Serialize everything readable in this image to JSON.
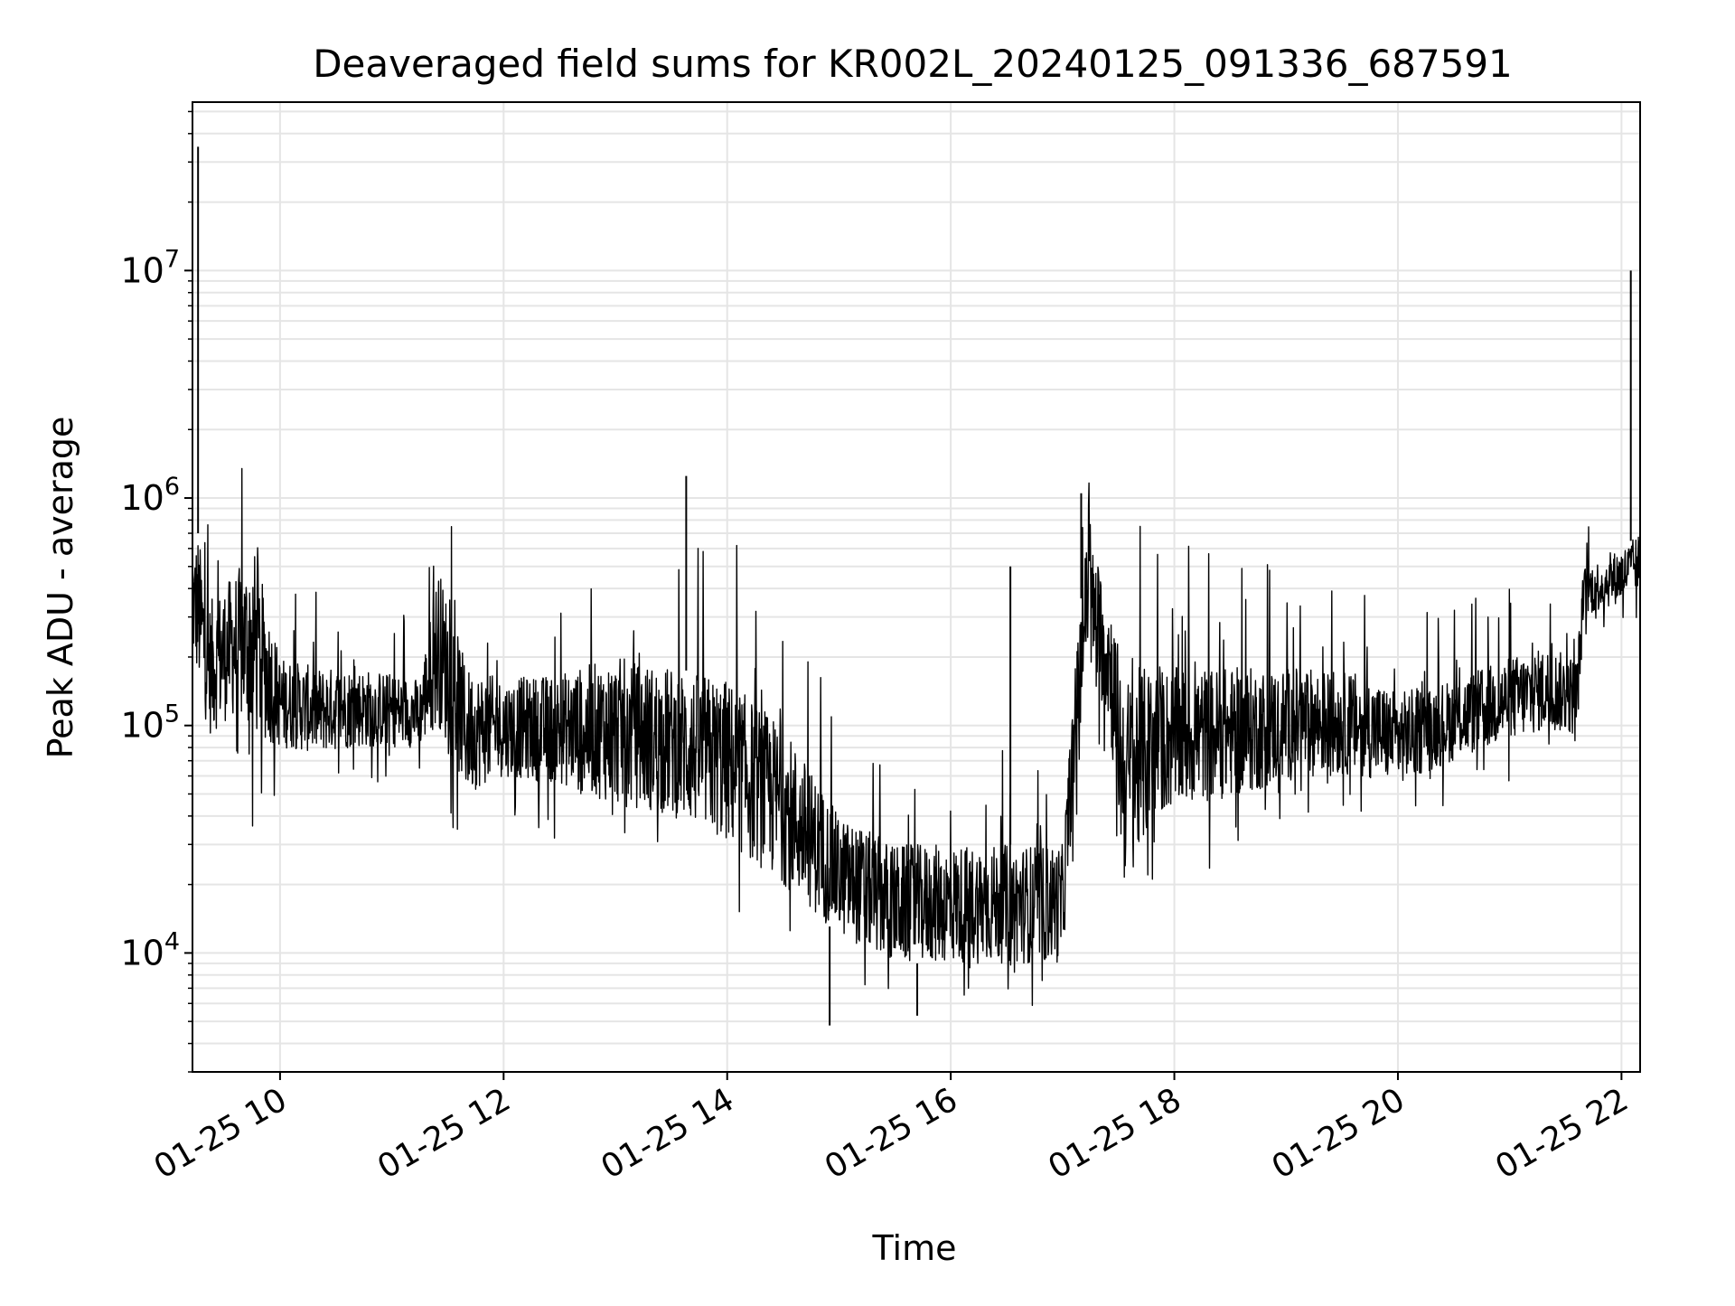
{
  "chart_data": {
    "type": "line",
    "title": "Deaveraged field sums for KR002L_20240125_091336_687591",
    "xlabel": "Time",
    "ylabel": "Peak ADU - average",
    "x_tick_labels": [
      "01-25 10",
      "01-25 12",
      "01-25 14",
      "01-25 16",
      "01-25 18",
      "01-25 20",
      "01-25 22"
    ],
    "y_tick_labels": [
      {
        "base": "10",
        "exp": "4"
      },
      {
        "base": "10",
        "exp": "5"
      },
      {
        "base": "10",
        "exp": "6"
      },
      {
        "base": "10",
        "exp": "7"
      }
    ],
    "x_ticks": [
      "2024-01-25T10:00",
      "2024-01-25T12:00",
      "2024-01-25T14:00",
      "2024-01-25T16:00",
      "2024-01-25T18:00",
      "2024-01-25T20:00",
      "2024-01-25T22:00"
    ],
    "y_ticks": [
      10000,
      100000,
      1000000,
      10000000
    ],
    "xlim": [
      "2024-01-25T09:13",
      "2024-01-25T22:10"
    ],
    "ylim": [
      3000,
      55000000
    ],
    "y_scale": "log",
    "grid": true,
    "legend": "none",
    "series_color": "#000000",
    "grid_color": "#e5e5e5",
    "envelope": {
      "description_of_values": "approximate typical upper (hi) and lower (lo) levels of the noisy trace at each time",
      "x": [
        "2024-01-25T09:13",
        "2024-01-25T09:16",
        "2024-01-25T09:22",
        "2024-01-25T09:34",
        "2024-01-25T09:46",
        "2024-01-25T10:00",
        "2024-01-25T10:20",
        "2024-01-25T10:40",
        "2024-01-25T11:00",
        "2024-01-25T11:15",
        "2024-01-25T11:25",
        "2024-01-25T11:33",
        "2024-01-25T11:40",
        "2024-01-25T12:00",
        "2024-01-25T12:30",
        "2024-01-25T13:00",
        "2024-01-25T13:30",
        "2024-01-25T14:00",
        "2024-01-25T14:30",
        "2024-01-25T15:00",
        "2024-01-25T15:30",
        "2024-01-25T16:00",
        "2024-01-25T16:30",
        "2024-01-25T17:00",
        "2024-01-25T17:06",
        "2024-01-25T17:13",
        "2024-01-25T17:25",
        "2024-01-25T17:33",
        "2024-01-25T17:40",
        "2024-01-25T17:50",
        "2024-01-25T18:10",
        "2024-01-25T18:40",
        "2024-01-25T19:10",
        "2024-01-25T19:40",
        "2024-01-25T20:00",
        "2024-01-25T20:30",
        "2024-01-25T21:00",
        "2024-01-25T21:20",
        "2024-01-25T21:36",
        "2024-01-25T21:40",
        "2024-01-25T22:00",
        "2024-01-25T22:10"
      ],
      "hi": [
        600000,
        700000,
        350000,
        450000,
        600000,
        200000,
        180000,
        180000,
        170000,
        160000,
        500000,
        300000,
        180000,
        160000,
        170000,
        200000,
        180000,
        160000,
        100000,
        40000,
        30000,
        30000,
        30000,
        30000,
        150000,
        700000,
        400000,
        160000,
        180000,
        180000,
        180000,
        180000,
        180000,
        170000,
        140000,
        160000,
        200000,
        220000,
        200000,
        500000,
        600000,
        700000
      ],
      "lo": [
        200000,
        150000,
        90000,
        110000,
        90000,
        80000,
        75000,
        80000,
        80000,
        80000,
        100000,
        70000,
        50000,
        60000,
        55000,
        45000,
        40000,
        30000,
        20000,
        12000,
        9000,
        9000,
        9000,
        9000,
        50000,
        200000,
        100000,
        20000,
        25000,
        40000,
        45000,
        50000,
        60000,
        60000,
        55000,
        70000,
        85000,
        95000,
        90000,
        300000,
        350000,
        400000
      ]
    },
    "spikes": [
      {
        "x": "2024-01-25T09:16",
        "y": 35000000
      },
      {
        "x": "2024-01-25T22:05",
        "y": 10000000
      },
      {
        "x": "2024-01-25T13:38",
        "y": 1250000
      },
      {
        "x": "2024-01-25T17:10",
        "y": 1050000
      },
      {
        "x": "2024-01-25T14:55",
        "y": 4800
      },
      {
        "x": "2024-01-25T15:42",
        "y": 5300
      },
      {
        "x": "2024-01-25T16:32",
        "y": 500000
      }
    ]
  }
}
